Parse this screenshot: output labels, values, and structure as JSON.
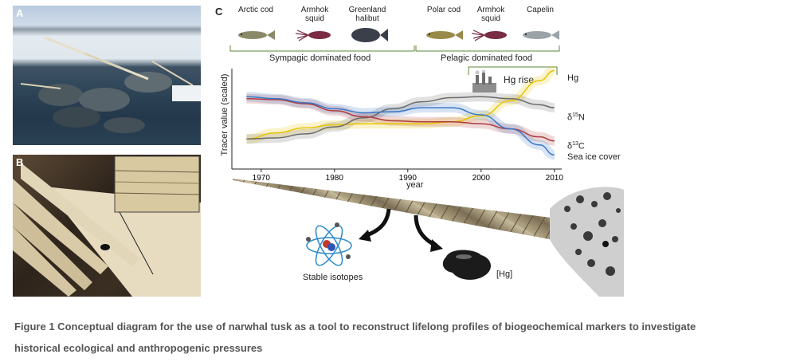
{
  "panels": {
    "a": "A",
    "b": "B",
    "c": "C"
  },
  "species_top": [
    {
      "name_lines": [
        "Arctic cod"
      ],
      "icon": "fish-icon",
      "color": "#8a8a6a"
    },
    {
      "name_lines": [
        "Armhok",
        "squid"
      ],
      "icon": "squid-icon",
      "color": "#7a2c44"
    },
    {
      "name_lines": [
        "Greenland",
        "halibut"
      ],
      "icon": "halibut-icon",
      "color": "#3a3f4a"
    },
    {
      "name_lines": [
        "Polar cod"
      ],
      "icon": "fish-icon",
      "color": "#9a8a4a"
    },
    {
      "name_lines": [
        "Armhok",
        "squid"
      ],
      "icon": "squid-icon",
      "color": "#7a2c44"
    },
    {
      "name_lines": [
        "Capelin"
      ],
      "icon": "fish-icon",
      "color": "#9aa3a8"
    }
  ],
  "brackets": {
    "sympagic": "Sympagic dominated food",
    "pelagic": "Pelagic dominated food",
    "hg_rise": "Hg rise",
    "color": "#4f7a2a"
  },
  "chart_data": {
    "type": "line",
    "ylabel": "Tracer value (scaled)",
    "xlabel": "year",
    "xlim": [
      1966,
      2011
    ],
    "ylim": [
      0,
      1
    ],
    "x_ticks": [
      1970,
      1980,
      1990,
      2000,
      2010
    ],
    "series": [
      {
        "name": "Hg",
        "color": "#e8c400",
        "x": [
          1968,
          1972,
          1976,
          1980,
          1984,
          1988,
          1992,
          1996,
          2000,
          2004,
          2008,
          2010
        ],
        "y": [
          0.3,
          0.36,
          0.41,
          0.44,
          0.45,
          0.45,
          0.45,
          0.47,
          0.53,
          0.68,
          0.88,
          0.98
        ]
      },
      {
        "name": "δ¹⁵N",
        "color": "#6b6b6b",
        "x": [
          1968,
          1972,
          1976,
          1980,
          1984,
          1988,
          1992,
          1996,
          2000,
          2004,
          2008,
          2010
        ],
        "y": [
          0.3,
          0.31,
          0.35,
          0.42,
          0.51,
          0.6,
          0.67,
          0.71,
          0.72,
          0.7,
          0.64,
          0.61
        ]
      },
      {
        "name": "δ¹³C",
        "color": "#b03c3c",
        "x": [
          1968,
          1972,
          1976,
          1980,
          1984,
          1988,
          1992,
          1996,
          2000,
          2004,
          2008,
          2010
        ],
        "y": [
          0.7,
          0.69,
          0.65,
          0.58,
          0.52,
          0.48,
          0.47,
          0.47,
          0.45,
          0.4,
          0.32,
          0.28
        ]
      },
      {
        "name": "Sea ice cover",
        "color": "#3a78c8",
        "x": [
          1968,
          1972,
          1976,
          1980,
          1984,
          1988,
          1992,
          1996,
          2000,
          2004,
          2008,
          2010
        ],
        "y": [
          0.72,
          0.7,
          0.66,
          0.6,
          0.56,
          0.57,
          0.61,
          0.61,
          0.54,
          0.4,
          0.24,
          0.14
        ]
      }
    ],
    "right_labels": [
      "Hg",
      "δ15N",
      "δ13C",
      "Sea ice cover"
    ]
  },
  "bottom": {
    "isotopes": "Stable isotopes",
    "mercury": "[Hg]"
  },
  "caption": {
    "line1": "Figure 1 Conceptual diagram for the use of narwhal tusk as a tool to reconstruct lifelong profiles of biogeochemical markers to investigate",
    "line2": "historical ecological and anthropogenic pressures"
  }
}
